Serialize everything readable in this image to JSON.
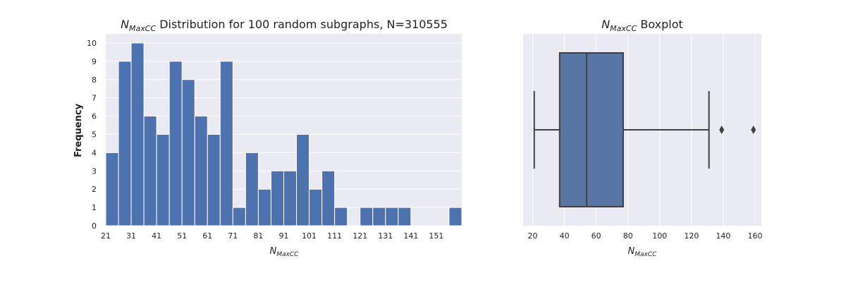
{
  "chart_data": [
    {
      "type": "bar",
      "title_main": "N",
      "title_sub": "MaxCC",
      "title_rest": " Distribution for 100 random subgraphs, N=310555",
      "xlabel_main": "N",
      "xlabel_sub": "MaxCC",
      "ylabel": "Frequency",
      "bin_start": 21,
      "bin_width": 5,
      "values": [
        4,
        9,
        10,
        6,
        5,
        9,
        8,
        6,
        5,
        9,
        1,
        4,
        2,
        3,
        3,
        5,
        2,
        3,
        1,
        0,
        1,
        1,
        1,
        1,
        0,
        0,
        0,
        1
      ],
      "xticks": [
        21,
        31,
        41,
        51,
        61,
        71,
        81,
        91,
        101,
        111,
        121,
        131,
        141,
        151
      ],
      "xlim": [
        21,
        161
      ],
      "yticks": [
        0,
        1,
        2,
        3,
        4,
        5,
        6,
        7,
        8,
        9,
        10
      ],
      "ylim": [
        0,
        10.5
      ],
      "bar_color": "#4c72b0",
      "grid": true
    },
    {
      "type": "boxplot",
      "title_main": "N",
      "title_sub": "MaxCC",
      "title_rest": " Boxplot",
      "xlabel_main": "N",
      "xlabel_sub": "MaxCC",
      "whisker_low": 21,
      "q1": 37,
      "median": 54,
      "q3": 77,
      "whisker_high": 131,
      "outliers": [
        139,
        159
      ],
      "xticks": [
        20,
        40,
        60,
        80,
        100,
        120,
        140,
        160
      ],
      "xlim": [
        14,
        164
      ],
      "box_color": "#5875a4",
      "line_color": "#404040",
      "grid": true
    }
  ]
}
